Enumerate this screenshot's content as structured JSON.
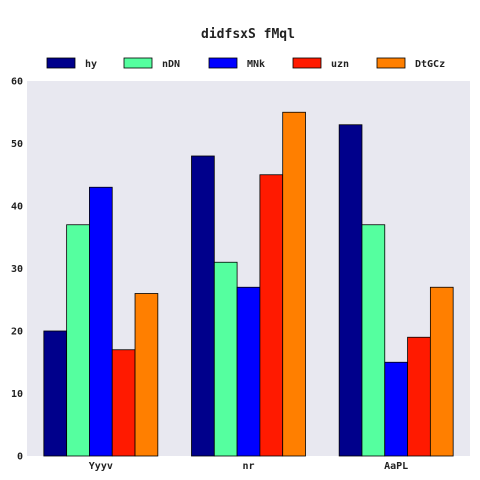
{
  "chart_data": {
    "type": "bar",
    "title": "didfsxS  fMql",
    "xlabel": "",
    "ylabel": "",
    "categories": [
      "Yyyv",
      "nr",
      "AaPL"
    ],
    "ylim": [
      0,
      60
    ],
    "yticks": [
      0,
      10,
      20,
      30,
      40,
      50,
      60
    ],
    "grid": false,
    "legend_position": "top",
    "series": [
      {
        "name": "hy",
        "color": "#00008b",
        "values": [
          20,
          48,
          53
        ]
      },
      {
        "name": "nDN",
        "color": "#55ff9f",
        "values": [
          37,
          31,
          37
        ]
      },
      {
        "name": "MNk",
        "color": "#0000ff",
        "values": [
          43,
          27,
          15
        ]
      },
      {
        "name": "uzn",
        "color": "#ff1a00",
        "values": [
          17,
          45,
          19
        ]
      },
      {
        "name": "DtGCz",
        "color": "#ff7f00",
        "values": [
          26,
          55,
          27
        ]
      }
    ],
    "plot_background": "#e8e8f0"
  }
}
